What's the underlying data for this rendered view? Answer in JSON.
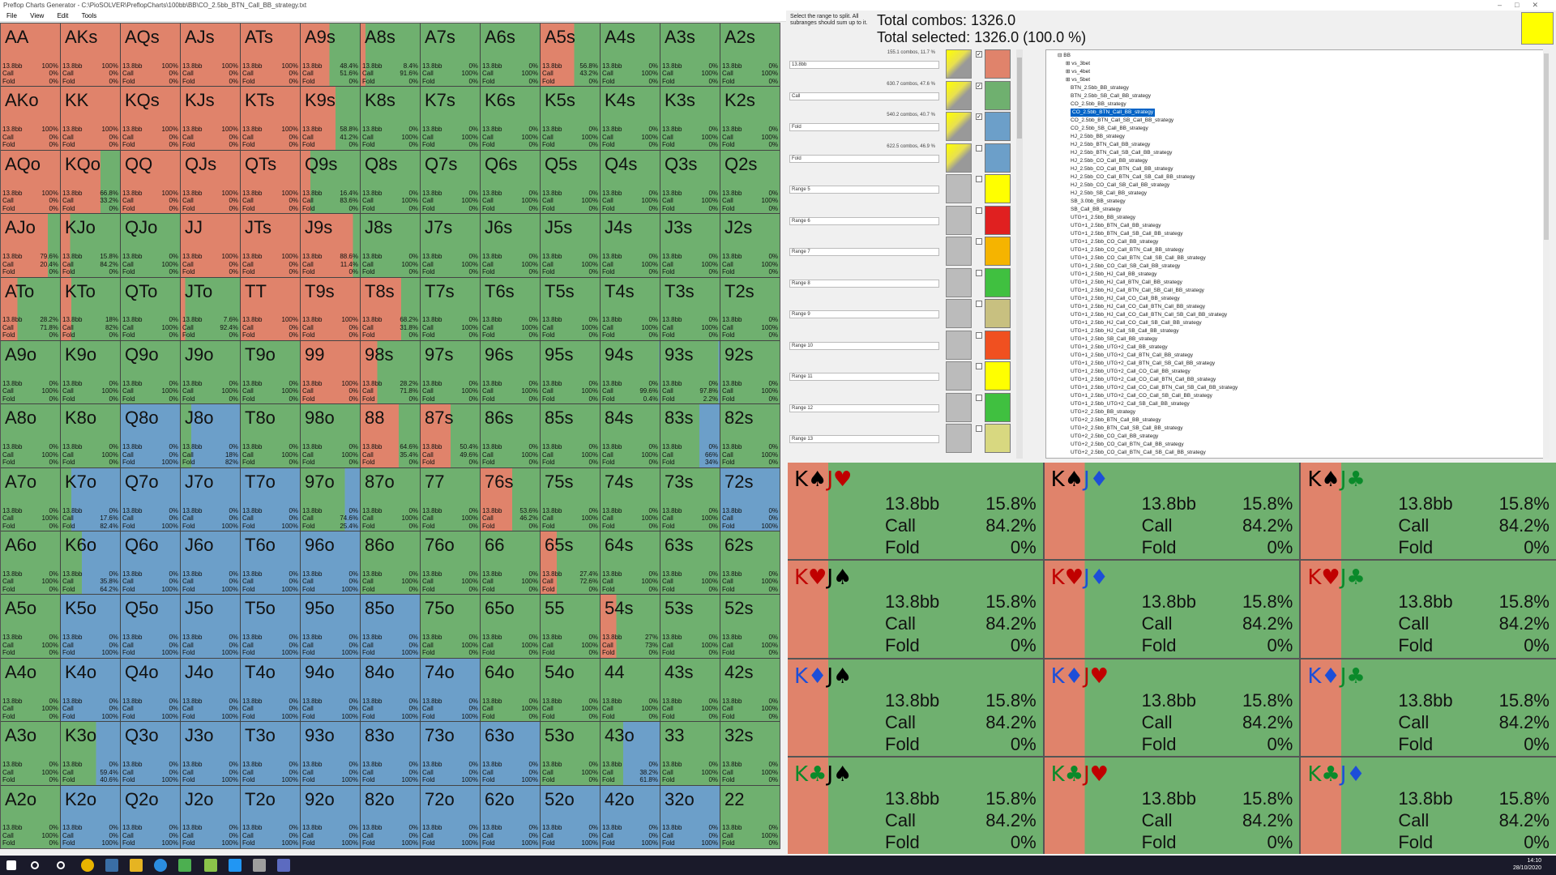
{
  "title": "Preflop Charts Generator - C:\\PioSOLVER\\PreflopCharts\\100bb\\BB\\CO_2.5bb_BTN_Call_BB_strategy.txt",
  "menu": [
    "File",
    "View",
    "Edit",
    "Tools"
  ],
  "colors": {
    "raise": "#e0836b",
    "call": "#6fb06f",
    "fold": "#6c9fc9"
  },
  "hint": "Select the range to split. All subranges should sum up to it.",
  "total_combos": "Total combos: 1326.0",
  "total_selected": "Total selected: 1326.0 (100.0 %)",
  "ranges": [
    {
      "combos": "155.1 combos, 11.7 %",
      "name": "13.8bb",
      "color": "#e0836b",
      "checked": true,
      "graph": true
    },
    {
      "combos": "630.7 combos, 47.6 %",
      "name": "Call",
      "color": "#6fb06f",
      "checked": true,
      "graph": true
    },
    {
      "combos": "540.2 combos, 40.7 %",
      "name": "Fold",
      "color": "#6c9fc9",
      "checked": true,
      "graph": true
    },
    {
      "combos": "622.5 combos, 46.9 %",
      "name": "Fold",
      "color": "#6c9fc9",
      "checked": false,
      "graph": true
    },
    {
      "combos": "",
      "name": "Range 5",
      "color": "#ffff00",
      "checked": false,
      "graph": false
    },
    {
      "combos": "",
      "name": "Range 6",
      "color": "#e02020",
      "checked": false,
      "graph": false
    },
    {
      "combos": "",
      "name": "Range 7",
      "color": "#f5b400",
      "checked": false,
      "graph": false
    },
    {
      "combos": "",
      "name": "Range 8",
      "color": "#40c040",
      "checked": false,
      "graph": false
    },
    {
      "combos": "",
      "name": "Range 9",
      "color": "#c8c080",
      "checked": false,
      "graph": false
    },
    {
      "combos": "",
      "name": "Range 10",
      "color": "#f05020",
      "checked": false,
      "graph": false
    },
    {
      "combos": "",
      "name": "Range 11",
      "color": "#ffff00",
      "checked": false,
      "graph": false
    },
    {
      "combos": "",
      "name": "Range 12",
      "color": "#40c040",
      "checked": false,
      "graph": false
    },
    {
      "combos": "",
      "name": "Range 13",
      "color": "#d8d880",
      "checked": false,
      "graph": false
    }
  ],
  "tree": [
    "BB",
    "vs_3bet",
    "vs_4bet",
    "vs_5bet",
    "BTN_2.5bb_BB_strategy",
    "BTN_2.5bb_SB_Call_BB_strategy",
    "CO_2.5bb_BB_strategy",
    "CO_2.5bb_BTN_Call_BB_strategy",
    "CO_2.5bb_BTN_Call_SB_Call_BB_strategy",
    "CO_2.5bb_SB_Call_BB_strategy",
    "HJ_2.5bb_BB_strategy",
    "HJ_2.5bb_BTN_Call_BB_strategy",
    "HJ_2.5bb_BTN_Call_SB_Call_BB_strategy",
    "HJ_2.5bb_CO_Call_BB_strategy",
    "HJ_2.5bb_CO_Call_BTN_Call_BB_strategy",
    "HJ_2.5bb_CO_Call_BTN_Call_SB_Call_BB_strategy",
    "HJ_2.5bb_CO_Call_SB_Call_BB_strategy",
    "HJ_2.5bb_SB_Call_BB_strategy",
    "SB_3.0bb_BB_strategy",
    "SB_Call_BB_strategy",
    "UTG+1_2.5bb_BB_strategy",
    "UTG+1_2.5bb_BTN_Call_BB_strategy",
    "UTG+1_2.5bb_BTN_Call_SB_Call_BB_strategy",
    "UTG+1_2.5bb_CO_Call_BB_strategy",
    "UTG+1_2.5bb_CO_Call_BTN_Call_BB_strategy",
    "UTG+1_2.5bb_CO_Call_BTN_Call_SB_Call_BB_strategy",
    "UTG+1_2.5bb_CO_Call_SB_Call_BB_strategy",
    "UTG+1_2.5bb_HJ_Call_BB_strategy",
    "UTG+1_2.5bb_HJ_Call_BTN_Call_BB_strategy",
    "UTG+1_2.5bb_HJ_Call_BTN_Call_SB_Call_BB_strategy",
    "UTG+1_2.5bb_HJ_Call_CO_Call_BB_strategy",
    "UTG+1_2.5bb_HJ_Call_CO_Call_BTN_Call_BB_strategy",
    "UTG+1_2.5bb_HJ_Call_CO_Call_BTN_Call_SB_Call_BB_strategy",
    "UTG+1_2.5bb_HJ_Call_CO_Call_SB_Call_BB_strategy",
    "UTG+1_2.5bb_HJ_Call_SB_Call_BB_strategy",
    "UTG+1_2.5bb_SB_Call_BB_strategy",
    "UTG+1_2.5bb_UTG+2_Call_BB_strategy",
    "UTG+1_2.5bb_UTG+2_Call_BTN_Call_BB_strategy",
    "UTG+1_2.5bb_UTG+2_Call_BTN_Call_SB_Call_BB_strategy",
    "UTG+1_2.5bb_UTG+2_Call_CO_Call_BB_strategy",
    "UTG+1_2.5bb_UTG+2_Call_CO_Call_BTN_Call_BB_strategy",
    "UTG+1_2.5bb_UTG+2_Call_CO_Call_BTN_Call_SB_Call_BB_strategy",
    "UTG+1_2.5bb_UTG+2_Call_CO_Call_SB_Call_BB_strategy",
    "UTG+1_2.5bb_UTG+2_Call_SB_Call_BB_strategy",
    "UTG+2_2.5bb_BB_strategy",
    "UTG+2_2.5bb_BTN_Call_BB_strategy",
    "UTG+2_2.5bb_BTN_Call_SB_Call_BB_strategy",
    "UTG+2_2.5bb_CO_Call_BB_strategy",
    "UTG+2_2.5bb_CO_Call_BTN_Call_BB_strategy",
    "UTG+2_2.5bb_CO_Call_BTN_Call_SB_Call_BB_strategy"
  ],
  "tree_selected": 7,
  "hands": [
    [
      "AA",
      "100%",
      "0%",
      "0%"
    ],
    [
      "AKs",
      "100%",
      "0%",
      "0%"
    ],
    [
      "AQs",
      "100%",
      "0%",
      "0%"
    ],
    [
      "AJs",
      "100%",
      "0%",
      "0%"
    ],
    [
      "ATs",
      "100%",
      "0%",
      "0%"
    ],
    [
      "A9s",
      "48.4%",
      "51.6%",
      "0%"
    ],
    [
      "A8s",
      "8.4%",
      "91.6%",
      "0%"
    ],
    [
      "A7s",
      "0%",
      "100%",
      "0%"
    ],
    [
      "A6s",
      "0%",
      "100%",
      "0%"
    ],
    [
      "A5s",
      "56.8%",
      "43.2%",
      "0%"
    ],
    [
      "A4s",
      "0%",
      "100%",
      "0%"
    ],
    [
      "A3s",
      "0%",
      "100%",
      "0%"
    ],
    [
      "A2s",
      "0%",
      "100%",
      "0%"
    ],
    [
      "AKo",
      "100%",
      "0%",
      "0%"
    ],
    [
      "KK",
      "100%",
      "0%",
      "0%"
    ],
    [
      "KQs",
      "100%",
      "0%",
      "0%"
    ],
    [
      "KJs",
      "100%",
      "0%",
      "0%"
    ],
    [
      "KTs",
      "100%",
      "0%",
      "0%"
    ],
    [
      "K9s",
      "58.8%",
      "41.2%",
      "0%"
    ],
    [
      "K8s",
      "0%",
      "100%",
      "0%"
    ],
    [
      "K7s",
      "0%",
      "100%",
      "0%"
    ],
    [
      "K6s",
      "0%",
      "100%",
      "0%"
    ],
    [
      "K5s",
      "0%",
      "100%",
      "0%"
    ],
    [
      "K4s",
      "0%",
      "100%",
      "0%"
    ],
    [
      "K3s",
      "0%",
      "100%",
      "0%"
    ],
    [
      "K2s",
      "0%",
      "100%",
      "0%"
    ],
    [
      "AQo",
      "100%",
      "0%",
      "0%"
    ],
    [
      "KQo",
      "66.8%",
      "33.2%",
      "0%"
    ],
    [
      "QQ",
      "100%",
      "0%",
      "0%"
    ],
    [
      "QJs",
      "100%",
      "0%",
      "0%"
    ],
    [
      "QTs",
      "100%",
      "0%",
      "0%"
    ],
    [
      "Q9s",
      "16.4%",
      "83.6%",
      "0%"
    ],
    [
      "Q8s",
      "0%",
      "100%",
      "0%"
    ],
    [
      "Q7s",
      "0%",
      "100%",
      "0%"
    ],
    [
      "Q6s",
      "0%",
      "100%",
      "0%"
    ],
    [
      "Q5s",
      "0%",
      "100%",
      "0%"
    ],
    [
      "Q4s",
      "0%",
      "100%",
      "0%"
    ],
    [
      "Q3s",
      "0%",
      "100%",
      "0%"
    ],
    [
      "Q2s",
      "0%",
      "100%",
      "0%"
    ],
    [
      "AJo",
      "79.6%",
      "20.4%",
      "0%"
    ],
    [
      "KJo",
      "15.8%",
      "84.2%",
      "0%"
    ],
    [
      "QJo",
      "0%",
      "100%",
      "0%"
    ],
    [
      "JJ",
      "100%",
      "0%",
      "0%"
    ],
    [
      "JTs",
      "100%",
      "0%",
      "0%"
    ],
    [
      "J9s",
      "88.6%",
      "11.4%",
      "0%"
    ],
    [
      "J8s",
      "0%",
      "100%",
      "0%"
    ],
    [
      "J7s",
      "0%",
      "100%",
      "0%"
    ],
    [
      "J6s",
      "0%",
      "100%",
      "0%"
    ],
    [
      "J5s",
      "0%",
      "100%",
      "0%"
    ],
    [
      "J4s",
      "0%",
      "100%",
      "0%"
    ],
    [
      "J3s",
      "0%",
      "100%",
      "0%"
    ],
    [
      "J2s",
      "0%",
      "100%",
      "0%"
    ],
    [
      "ATo",
      "28.2%",
      "71.8%",
      "0%"
    ],
    [
      "KTo",
      "18%",
      "82%",
      "0%"
    ],
    [
      "QTo",
      "0%",
      "100%",
      "0%"
    ],
    [
      "JTo",
      "7.6%",
      "92.4%",
      "0%"
    ],
    [
      "TT",
      "100%",
      "0%",
      "0%"
    ],
    [
      "T9s",
      "100%",
      "0%",
      "0%"
    ],
    [
      "T8s",
      "68.2%",
      "31.8%",
      "0%"
    ],
    [
      "T7s",
      "0%",
      "100%",
      "0%"
    ],
    [
      "T6s",
      "0%",
      "100%",
      "0%"
    ],
    [
      "T5s",
      "0%",
      "100%",
      "0%"
    ],
    [
      "T4s",
      "0%",
      "100%",
      "0%"
    ],
    [
      "T3s",
      "0%",
      "100%",
      "0%"
    ],
    [
      "T2s",
      "0%",
      "100%",
      "0%"
    ],
    [
      "A9o",
      "0%",
      "100%",
      "0%"
    ],
    [
      "K9o",
      "0%",
      "100%",
      "0%"
    ],
    [
      "Q9o",
      "0%",
      "100%",
      "0%"
    ],
    [
      "J9o",
      "0%",
      "100%",
      "0%"
    ],
    [
      "T9o",
      "0%",
      "100%",
      "0%"
    ],
    [
      "99",
      "100%",
      "0%",
      "0%"
    ],
    [
      "98s",
      "28.2%",
      "71.8%",
      "0%"
    ],
    [
      "97s",
      "0%",
      "100%",
      "0%"
    ],
    [
      "96s",
      "0%",
      "100%",
      "0%"
    ],
    [
      "95s",
      "0%",
      "100%",
      "0%"
    ],
    [
      "94s",
      "0%",
      "99.6%",
      "0.4%"
    ],
    [
      "93s",
      "0%",
      "97.8%",
      "2.2%"
    ],
    [
      "92s",
      "0%",
      "100%",
      "0%"
    ],
    [
      "A8o",
      "0%",
      "100%",
      "0%"
    ],
    [
      "K8o",
      "0%",
      "100%",
      "0%"
    ],
    [
      "Q8o",
      "0%",
      "0%",
      "100%"
    ],
    [
      "J8o",
      "0%",
      "18%",
      "82%"
    ],
    [
      "T8o",
      "0%",
      "100%",
      "0%"
    ],
    [
      "98o",
      "0%",
      "100%",
      "0%"
    ],
    [
      "88",
      "64.6%",
      "35.4%",
      "0%"
    ],
    [
      "87s",
      "50.4%",
      "49.6%",
      "0%"
    ],
    [
      "86s",
      "0%",
      "100%",
      "0%"
    ],
    [
      "85s",
      "0%",
      "100%",
      "0%"
    ],
    [
      "84s",
      "0%",
      "100%",
      "0%"
    ],
    [
      "83s",
      "0%",
      "66%",
      "34%"
    ],
    [
      "82s",
      "0%",
      "100%",
      "0%"
    ],
    [
      "A7o",
      "0%",
      "100%",
      "0%"
    ],
    [
      "K7o",
      "0%",
      "17.6%",
      "82.4%"
    ],
    [
      "Q7o",
      "0%",
      "0%",
      "100%"
    ],
    [
      "J7o",
      "0%",
      "0%",
      "100%"
    ],
    [
      "T7o",
      "0%",
      "0%",
      "100%"
    ],
    [
      "97o",
      "0%",
      "74.6%",
      "25.4%"
    ],
    [
      "87o",
      "0%",
      "100%",
      "0%"
    ],
    [
      "77",
      "0%",
      "100%",
      "0%"
    ],
    [
      "76s",
      "53.6%",
      "46.2%",
      "0%"
    ],
    [
      "75s",
      "0%",
      "100%",
      "0%"
    ],
    [
      "74s",
      "0%",
      "100%",
      "0%"
    ],
    [
      "73s",
      "0%",
      "100%",
      "0%"
    ],
    [
      "72s",
      "0%",
      "0%",
      "100%"
    ],
    [
      "A6o",
      "0%",
      "100%",
      "0%"
    ],
    [
      "K6o",
      "0%",
      "35.8%",
      "64.2%"
    ],
    [
      "Q6o",
      "0%",
      "0%",
      "100%"
    ],
    [
      "J6o",
      "0%",
      "0%",
      "100%"
    ],
    [
      "T6o",
      "0%",
      "0%",
      "100%"
    ],
    [
      "96o",
      "0%",
      "0%",
      "100%"
    ],
    [
      "86o",
      "0%",
      "100%",
      "0%"
    ],
    [
      "76o",
      "0%",
      "100%",
      "0%"
    ],
    [
      "66",
      "0%",
      "100%",
      "0%"
    ],
    [
      "65s",
      "27.4%",
      "72.6%",
      "0%"
    ],
    [
      "64s",
      "0%",
      "100%",
      "0%"
    ],
    [
      "63s",
      "0%",
      "100%",
      "0%"
    ],
    [
      "62s",
      "0%",
      "100%",
      "0%"
    ],
    [
      "A5o",
      "0%",
      "100%",
      "0%"
    ],
    [
      "K5o",
      "0%",
      "0%",
      "100%"
    ],
    [
      "Q5o",
      "0%",
      "0%",
      "100%"
    ],
    [
      "J5o",
      "0%",
      "0%",
      "100%"
    ],
    [
      "T5o",
      "0%",
      "0%",
      "100%"
    ],
    [
      "95o",
      "0%",
      "0%",
      "100%"
    ],
    [
      "85o",
      "0%",
      "0%",
      "100%"
    ],
    [
      "75o",
      "0%",
      "100%",
      "0%"
    ],
    [
      "65o",
      "0%",
      "100%",
      "0%"
    ],
    [
      "55",
      "0%",
      "100%",
      "0%"
    ],
    [
      "54s",
      "27%",
      "73%",
      "0%"
    ],
    [
      "53s",
      "0%",
      "100%",
      "0%"
    ],
    [
      "52s",
      "0%",
      "100%",
      "0%"
    ],
    [
      "A4o",
      "0%",
      "100%",
      "0%"
    ],
    [
      "K4o",
      "0%",
      "0%",
      "100%"
    ],
    [
      "Q4o",
      "0%",
      "0%",
      "100%"
    ],
    [
      "J4o",
      "0%",
      "0%",
      "100%"
    ],
    [
      "T4o",
      "0%",
      "0%",
      "100%"
    ],
    [
      "94o",
      "0%",
      "0%",
      "100%"
    ],
    [
      "84o",
      "0%",
      "0%",
      "100%"
    ],
    [
      "74o",
      "0%",
      "0%",
      "100%"
    ],
    [
      "64o",
      "0%",
      "100%",
      "0%"
    ],
    [
      "54o",
      "0%",
      "100%",
      "0%"
    ],
    [
      "44",
      "0%",
      "100%",
      "0%"
    ],
    [
      "43s",
      "0%",
      "100%",
      "0%"
    ],
    [
      "42s",
      "0%",
      "100%",
      "0%"
    ],
    [
      "A3o",
      "0%",
      "100%",
      "0%"
    ],
    [
      "K3o",
      "0%",
      "59.4%",
      "40.6%"
    ],
    [
      "Q3o",
      "0%",
      "0%",
      "100%"
    ],
    [
      "J3o",
      "0%",
      "0%",
      "100%"
    ],
    [
      "T3o",
      "0%",
      "0%",
      "100%"
    ],
    [
      "93o",
      "0%",
      "0%",
      "100%"
    ],
    [
      "83o",
      "0%",
      "0%",
      "100%"
    ],
    [
      "73o",
      "0%",
      "0%",
      "100%"
    ],
    [
      "63o",
      "0%",
      "0%",
      "100%"
    ],
    [
      "53o",
      "0%",
      "100%",
      "0%"
    ],
    [
      "43o",
      "0%",
      "38.2%",
      "61.8%"
    ],
    [
      "33",
      "0%",
      "100%",
      "0%"
    ],
    [
      "32s",
      "0%",
      "100%",
      "0%"
    ],
    [
      "A2o",
      "0%",
      "100%",
      "0%"
    ],
    [
      "K2o",
      "0%",
      "0%",
      "100%"
    ],
    [
      "Q2o",
      "0%",
      "0%",
      "100%"
    ],
    [
      "J2o",
      "0%",
      "0%",
      "100%"
    ],
    [
      "T2o",
      "0%",
      "0%",
      "100%"
    ],
    [
      "92o",
      "0%",
      "0%",
      "100%"
    ],
    [
      "82o",
      "0%",
      "0%",
      "100%"
    ],
    [
      "72o",
      "0%",
      "0%",
      "100%"
    ],
    [
      "62o",
      "0%",
      "0%",
      "100%"
    ],
    [
      "52o",
      "0%",
      "0%",
      "100%"
    ],
    [
      "42o",
      "0%",
      "0%",
      "100%"
    ],
    [
      "32o",
      "0%",
      "0%",
      "100%"
    ],
    [
      "22",
      "0%",
      "100%",
      "0%"
    ]
  ],
  "action_labels": [
    "13.8bb",
    "Call",
    "Fold"
  ],
  "combos": [
    {
      "k": "K",
      "ks": "♠",
      "kc": "#000",
      "j": "J",
      "js": "♥",
      "jc": "#c00000"
    },
    {
      "k": "K",
      "ks": "♠",
      "kc": "#000",
      "j": "J",
      "js": "♦",
      "jc": "#1d4ed8"
    },
    {
      "k": "K",
      "ks": "♠",
      "kc": "#000",
      "j": "J",
      "js": "♣",
      "jc": "#0a8a2a"
    },
    {
      "k": "K",
      "ks": "♥",
      "kc": "#c00000",
      "j": "J",
      "js": "♠",
      "jc": "#000"
    },
    {
      "k": "K",
      "ks": "♥",
      "kc": "#c00000",
      "j": "J",
      "js": "♦",
      "jc": "#1d4ed8"
    },
    {
      "k": "K",
      "ks": "♥",
      "kc": "#c00000",
      "j": "J",
      "js": "♣",
      "jc": "#0a8a2a"
    },
    {
      "k": "K",
      "ks": "♦",
      "kc": "#1d4ed8",
      "j": "J",
      "js": "♠",
      "jc": "#000"
    },
    {
      "k": "K",
      "ks": "♦",
      "kc": "#1d4ed8",
      "j": "J",
      "js": "♥",
      "jc": "#c00000"
    },
    {
      "k": "K",
      "ks": "♦",
      "kc": "#1d4ed8",
      "j": "J",
      "js": "♣",
      "jc": "#0a8a2a"
    },
    {
      "k": "K",
      "ks": "♣",
      "kc": "#0a8a2a",
      "j": "J",
      "js": "♠",
      "jc": "#000"
    },
    {
      "k": "K",
      "ks": "♣",
      "kc": "#0a8a2a",
      "j": "J",
      "js": "♥",
      "jc": "#c00000"
    },
    {
      "k": "K",
      "ks": "♣",
      "kc": "#0a8a2a",
      "j": "J",
      "js": "♦",
      "jc": "#1d4ed8"
    }
  ],
  "combo_values": [
    "15.8%",
    "84.2%",
    "0%"
  ],
  "clock": {
    "time": "14:10",
    "date": "28/10/2020"
  }
}
